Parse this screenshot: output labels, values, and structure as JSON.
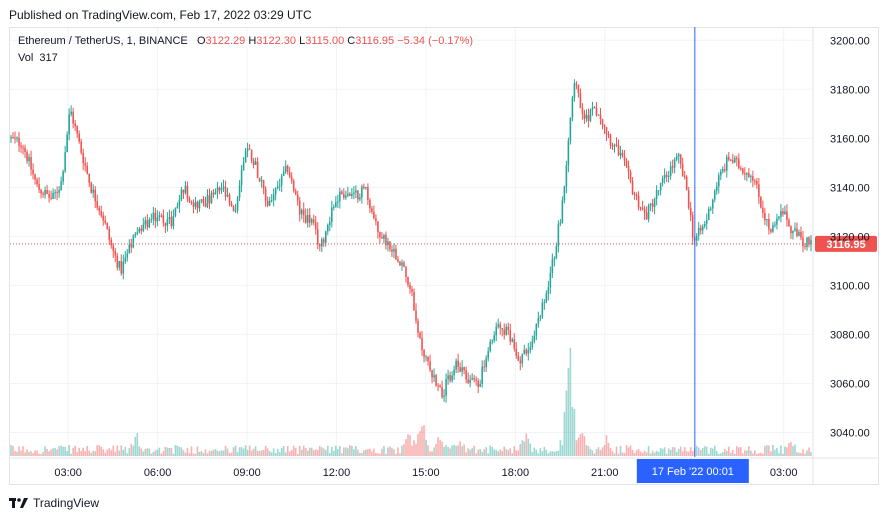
{
  "header": {
    "published": "Published on TradingView.com, Feb 17, 2022 03:29 UTC"
  },
  "legend": {
    "symbol": "Ethereum / TetherUS, 1, BINANCE",
    "o_label": "O",
    "o": "3122.29",
    "h_label": "H",
    "h": "3122.30",
    "l_label": "L",
    "l": "3115.00",
    "c_label": "C",
    "c": "3116.95",
    "change": "−5.34 (−0.17%)",
    "vol_label": "Vol",
    "vol": "317"
  },
  "footer": {
    "brand": "TradingView"
  },
  "colors": {
    "up": "#26a69a",
    "down": "#ef5350",
    "crosshair": "#2962ff",
    "grid": "#f0f3fa"
  },
  "chart_data": {
    "type": "candlestick",
    "symbol": "Ethereum / TetherUS",
    "interval": "1",
    "exchange": "BINANCE",
    "ylim": [
      3030,
      3205
    ],
    "y_ticks": [
      "3200.00",
      "3180.00",
      "3160.00",
      "3140.00",
      "3120.00",
      "3100.00",
      "3080.00",
      "3060.00",
      "3040.00"
    ],
    "y_tick_values": [
      3200,
      3180,
      3160,
      3140,
      3120,
      3100,
      3080,
      3060,
      3040
    ],
    "x_ticks": [
      "03:00",
      "06:00",
      "09:00",
      "12:00",
      "15:00",
      "18:00",
      "21:00",
      "03:00"
    ],
    "x_tick_hours": [
      3,
      6,
      9,
      12,
      15,
      18,
      21,
      27
    ],
    "x_range_hours": [
      1.05,
      27.95
    ],
    "last_price": "3116.95",
    "last_value": 3116.95,
    "crosshair_label": "17 Feb '22   00:01",
    "crosshair_hour": 24.02,
    "price_path": [
      [
        1.05,
        3160
      ],
      [
        1.5,
        3158
      ],
      [
        2.0,
        3140
      ],
      [
        2.5,
        3135
      ],
      [
        2.8,
        3142
      ],
      [
        3.1,
        3172
      ],
      [
        3.4,
        3158
      ],
      [
        3.8,
        3140
      ],
      [
        4.2,
        3128
      ],
      [
        4.5,
        3115
      ],
      [
        4.8,
        3106
      ],
      [
        5.2,
        3118
      ],
      [
        5.6,
        3125
      ],
      [
        6.0,
        3128
      ],
      [
        6.5,
        3126
      ],
      [
        6.9,
        3140
      ],
      [
        7.3,
        3133
      ],
      [
        7.8,
        3135
      ],
      [
        8.2,
        3140
      ],
      [
        8.6,
        3128
      ],
      [
        9.0,
        3157
      ],
      [
        9.3,
        3150
      ],
      [
        9.7,
        3133
      ],
      [
        10.0,
        3138
      ],
      [
        10.4,
        3148
      ],
      [
        10.8,
        3130
      ],
      [
        11.2,
        3126
      ],
      [
        11.5,
        3115
      ],
      [
        11.9,
        3132
      ],
      [
        12.2,
        3138
      ],
      [
        12.6,
        3136
      ],
      [
        13.0,
        3140
      ],
      [
        13.4,
        3122
      ],
      [
        13.8,
        3117
      ],
      [
        14.2,
        3110
      ],
      [
        14.5,
        3100
      ],
      [
        14.8,
        3078
      ],
      [
        15.2,
        3065
      ],
      [
        15.6,
        3056
      ],
      [
        16.0,
        3068
      ],
      [
        16.4,
        3062
      ],
      [
        16.8,
        3060
      ],
      [
        17.1,
        3072
      ],
      [
        17.5,
        3085
      ],
      [
        17.9,
        3078
      ],
      [
        18.2,
        3070
      ],
      [
        18.6,
        3077
      ],
      [
        19.0,
        3093
      ],
      [
        19.3,
        3110
      ],
      [
        19.6,
        3132
      ],
      [
        19.9,
        3172
      ],
      [
        20.0,
        3185
      ],
      [
        20.3,
        3168
      ],
      [
        20.8,
        3172
      ],
      [
        21.2,
        3160
      ],
      [
        21.6,
        3152
      ],
      [
        22.0,
        3138
      ],
      [
        22.4,
        3128
      ],
      [
        22.8,
        3138
      ],
      [
        23.2,
        3147
      ],
      [
        23.5,
        3152
      ],
      [
        23.8,
        3138
      ],
      [
        24.02,
        3118
      ],
      [
        24.4,
        3125
      ],
      [
        24.8,
        3142
      ],
      [
        25.2,
        3152
      ],
      [
        25.6,
        3148
      ],
      [
        26.0,
        3145
      ],
      [
        26.3,
        3132
      ],
      [
        26.6,
        3121
      ],
      [
        27.0,
        3130
      ],
      [
        27.3,
        3122
      ],
      [
        27.6,
        3119
      ],
      [
        27.95,
        3116.95
      ]
    ],
    "volume_spikes": [
      [
        5.3,
        16
      ],
      [
        14.4,
        20
      ],
      [
        14.8,
        38
      ],
      [
        15.4,
        20
      ],
      [
        16.1,
        12
      ],
      [
        18.3,
        18
      ],
      [
        19.7,
        50
      ],
      [
        19.8,
        100
      ],
      [
        20.2,
        26
      ],
      [
        21.0,
        15
      ],
      [
        27.2,
        10
      ]
    ]
  }
}
